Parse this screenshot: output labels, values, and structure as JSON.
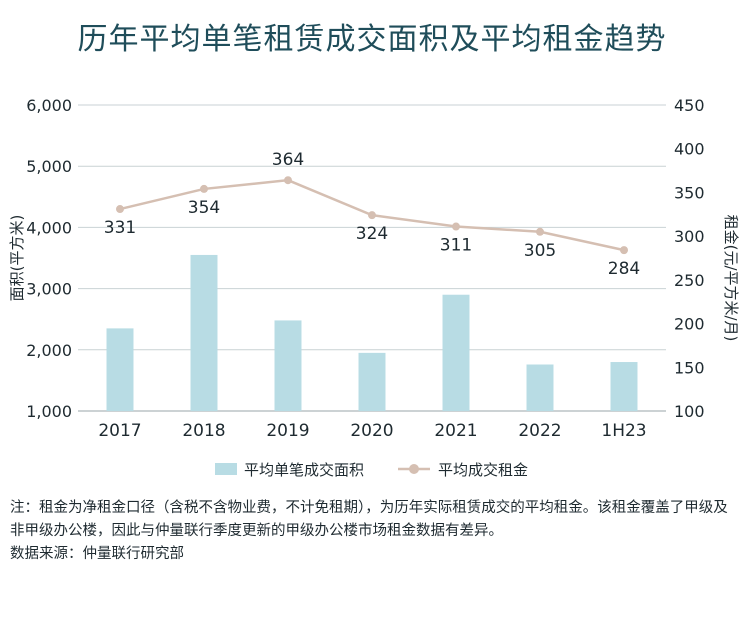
{
  "title": "历年平均单笔租赁成交面积及平均租金趋势",
  "chart_data": {
    "type": "bar+line",
    "categories": [
      "2017",
      "2018",
      "2019",
      "2020",
      "2021",
      "2022",
      "1H23"
    ],
    "series": [
      {
        "name": "平均单笔成交面积",
        "type": "bar",
        "axis": "left",
        "color": "#b8dce4",
        "values": [
          2350,
          3550,
          2480,
          1950,
          2900,
          1760,
          1800
        ]
      },
      {
        "name": "平均成交租金",
        "type": "line",
        "axis": "right",
        "color": "#d5bfb2",
        "values": [
          331,
          354,
          364,
          324,
          311,
          305,
          284
        ]
      }
    ],
    "y_left": {
      "label": "面积(平方米)",
      "min": 1000,
      "max": 6000,
      "ticks": [
        "1,000",
        "2,000",
        "3,000",
        "4,000",
        "5,000",
        "6,000"
      ]
    },
    "y_right": {
      "label": "租金(元/平方米/月)",
      "min": 100,
      "max": 450,
      "ticks": [
        "100",
        "150",
        "200",
        "250",
        "300",
        "350",
        "400",
        "450"
      ]
    },
    "legend_position": "bottom"
  },
  "notes": [
    "注：租金为净租金口径（含税不含物业费，不计免租期），为历年实际租赁成交的平均租金。该租金覆盖了甲级及非甲级办公楼，因此与仲量联行季度更新的甲级办公楼市场租金数据有差异。",
    "数据来源：仲量联行研究部"
  ]
}
